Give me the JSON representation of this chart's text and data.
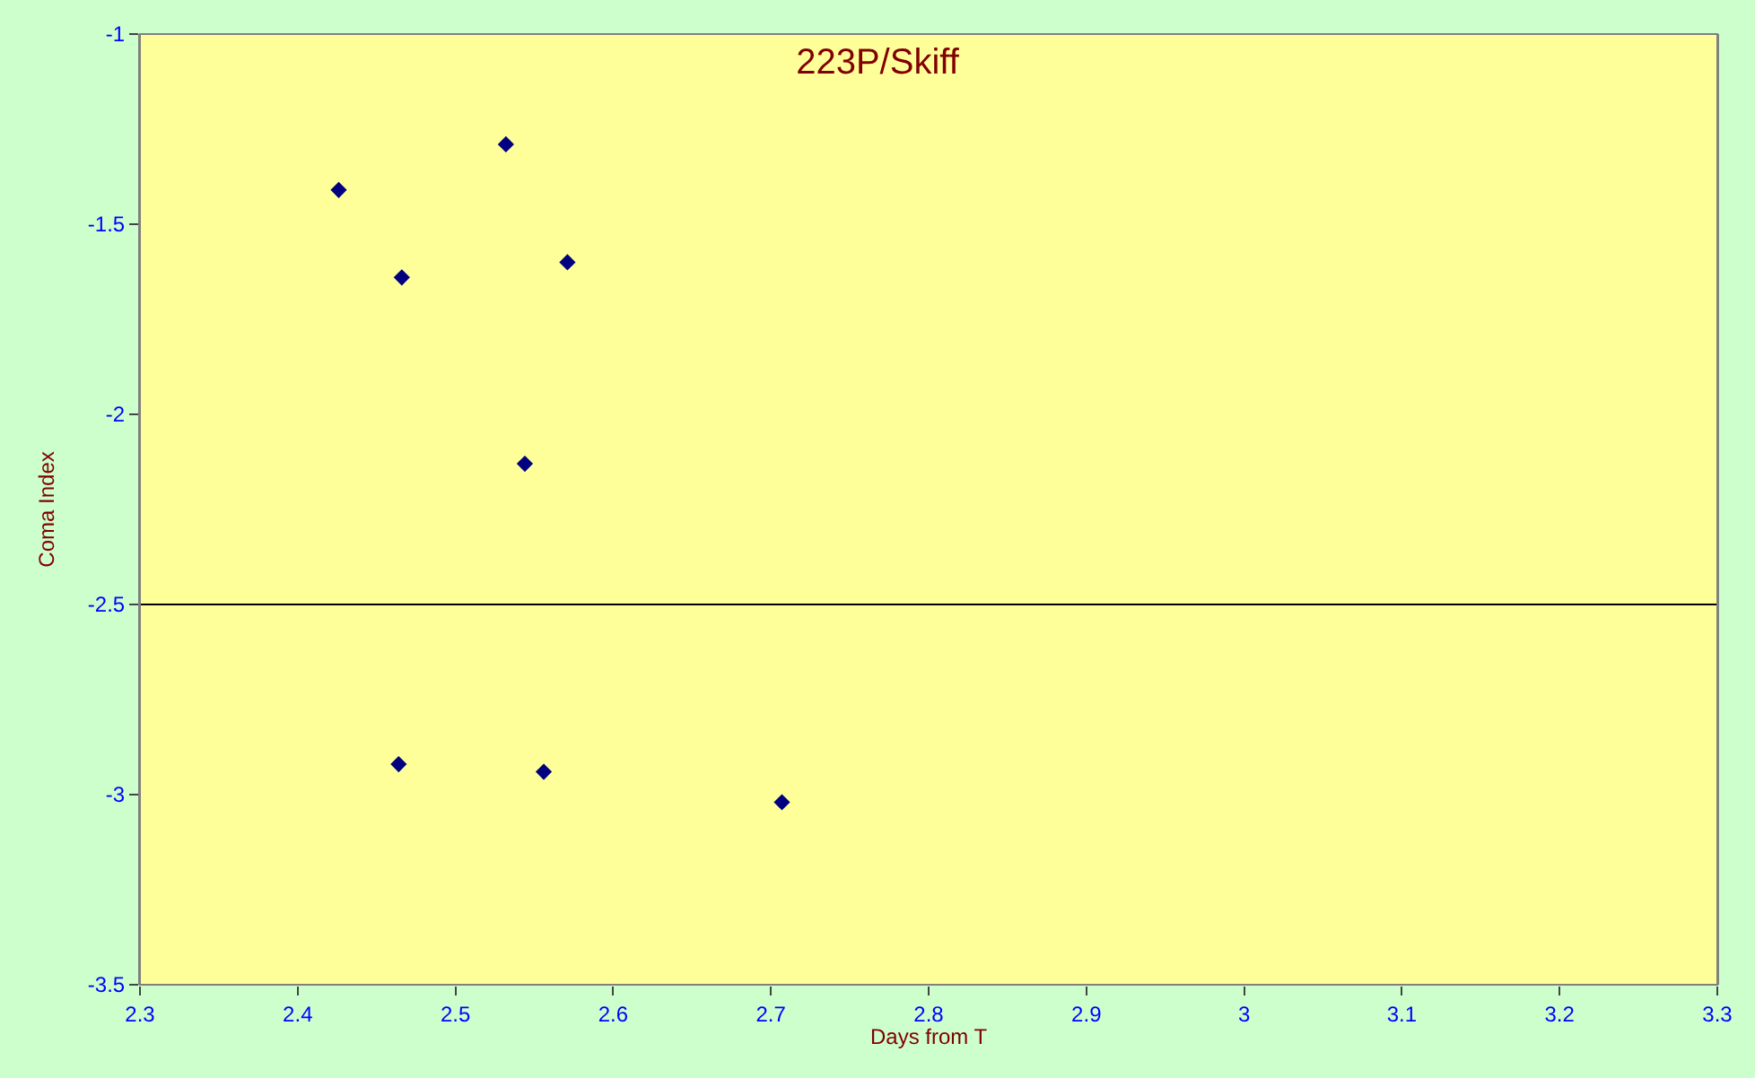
{
  "chart_data": {
    "type": "scatter",
    "title": "223P/Skiff",
    "xlabel": "Days from T",
    "ylabel": "Coma Index",
    "series": [
      {
        "color": "#000080",
        "x": [
          2.426,
          2.466,
          2.532,
          2.571,
          2.544,
          2.464,
          2.556,
          2.707
        ],
        "values": [
          -1.41,
          -1.64,
          -1.29,
          -1.6,
          -2.13,
          -2.92,
          -2.94,
          -3.02
        ]
      }
    ],
    "xlim": [
      2.3,
      3.3
    ],
    "xticks": [
      2.3,
      2.4,
      2.5,
      2.6,
      2.7,
      2.8,
      2.9,
      3,
      3.1,
      3.2,
      3.3
    ],
    "ylim": [
      -3.5,
      -1
    ],
    "yticks": [
      -3.5,
      -3,
      -2.5,
      -2,
      -1.5,
      -1
    ],
    "ref_lines": [
      {
        "axis": "y",
        "value": -2.5
      }
    ],
    "marker": "diamond",
    "grid": false,
    "legend": false
  }
}
